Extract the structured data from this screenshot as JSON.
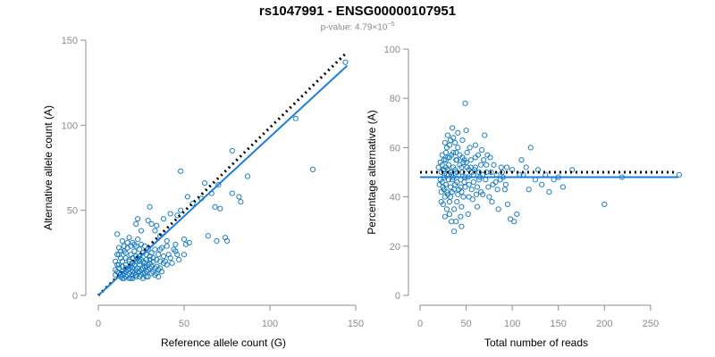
{
  "title": "rs1047991 - ENSG00000107951",
  "pvalue": {
    "prefix": "p-value: ",
    "mantissa": "4.79×10",
    "exponent": "−5"
  },
  "colors": {
    "points": "#1f7fc4",
    "fit": "#1a7fe0",
    "reference": "#000000",
    "axis": "#8c8c8c"
  },
  "chart_data": [
    {
      "type": "scatter",
      "xlabel": "Reference allele count (G)",
      "ylabel": "Alternative allele count (A)",
      "xlim": [
        0,
        150
      ],
      "ylim": [
        0,
        150
      ],
      "xticks": [
        "0",
        "50",
        "100",
        "150"
      ],
      "yticks": [
        "0",
        "50",
        "100",
        "150"
      ],
      "lines": [
        {
          "kind": "reference",
          "style": "dotted",
          "from": [
            0,
            0
          ],
          "to": [
            145,
            143
          ]
        },
        {
          "kind": "fit",
          "style": "solid",
          "from": [
            0,
            0
          ],
          "to": [
            145,
            135
          ]
        }
      ],
      "points": [
        [
          144,
          137
        ],
        [
          115,
          104
        ],
        [
          125,
          74
        ],
        [
          48,
          73
        ],
        [
          78,
          85
        ],
        [
          87,
          70
        ],
        [
          62,
          66
        ],
        [
          70,
          65
        ],
        [
          66,
          60
        ],
        [
          78,
          60
        ],
        [
          68,
          52
        ],
        [
          71,
          51
        ],
        [
          82,
          58
        ],
        [
          83,
          55
        ],
        [
          52,
          58
        ],
        [
          60,
          57
        ],
        [
          55,
          54
        ],
        [
          42,
          48
        ],
        [
          46,
          47
        ],
        [
          38,
          45
        ],
        [
          48,
          50
        ],
        [
          64,
          35
        ],
        [
          74,
          34
        ],
        [
          69,
          32
        ],
        [
          75,
          32
        ],
        [
          50,
          33
        ],
        [
          53,
          31
        ],
        [
          51,
          30
        ],
        [
          45,
          30
        ],
        [
          40,
          29
        ],
        [
          40,
          32
        ],
        [
          36,
          35
        ],
        [
          33,
          38
        ],
        [
          34,
          41
        ],
        [
          31,
          42
        ],
        [
          29,
          44
        ],
        [
          25,
          38
        ],
        [
          23,
          45
        ],
        [
          22,
          42
        ],
        [
          30,
          52
        ],
        [
          11,
          36
        ],
        [
          14,
          32
        ],
        [
          18,
          34
        ],
        [
          20,
          31
        ],
        [
          22,
          29
        ],
        [
          24,
          27
        ],
        [
          26,
          25
        ],
        [
          28,
          24
        ],
        [
          30,
          23
        ],
        [
          32,
          22
        ],
        [
          34,
          21
        ],
        [
          36,
          20
        ],
        [
          38,
          19
        ],
        [
          40,
          18
        ],
        [
          43,
          19
        ],
        [
          44,
          27
        ],
        [
          46,
          24
        ],
        [
          36,
          27
        ],
        [
          12,
          28
        ],
        [
          15,
          26
        ],
        [
          17,
          28
        ],
        [
          19,
          24
        ],
        [
          21,
          26
        ],
        [
          23,
          22
        ],
        [
          25,
          21
        ],
        [
          27,
          19
        ],
        [
          29,
          18
        ],
        [
          31,
          17
        ],
        [
          33,
          16
        ],
        [
          35,
          15
        ],
        [
          37,
          14
        ],
        [
          13,
          22
        ],
        [
          14,
          20
        ],
        [
          16,
          18
        ],
        [
          18,
          16
        ],
        [
          20,
          14
        ],
        [
          22,
          12
        ],
        [
          24,
          11
        ],
        [
          26,
          10
        ],
        [
          28,
          11
        ],
        [
          11,
          14
        ],
        [
          12,
          16
        ],
        [
          13,
          12
        ],
        [
          15,
          10
        ],
        [
          17,
          12
        ],
        [
          19,
          10
        ],
        [
          21,
          18
        ],
        [
          23,
          16
        ],
        [
          25,
          15
        ],
        [
          27,
          17
        ],
        [
          29,
          15
        ],
        [
          31,
          13
        ],
        [
          33,
          12
        ],
        [
          35,
          11
        ],
        [
          12,
          18
        ],
        [
          14,
          14
        ],
        [
          16,
          22
        ],
        [
          18,
          20
        ],
        [
          20,
          22
        ],
        [
          22,
          20
        ],
        [
          24,
          18
        ],
        [
          26,
          16
        ],
        [
          28,
          14
        ],
        [
          30,
          19
        ],
        [
          13,
          11
        ],
        [
          15,
          13
        ],
        [
          17,
          15
        ],
        [
          19,
          17
        ],
        [
          21,
          13
        ],
        [
          23,
          14
        ],
        [
          25,
          12
        ],
        [
          27,
          13
        ],
        [
          29,
          11
        ],
        [
          14,
          10
        ],
        [
          16,
          11
        ],
        [
          18,
          10
        ],
        [
          20,
          10
        ],
        [
          10,
          12
        ],
        [
          11,
          18
        ],
        [
          10,
          20
        ],
        [
          12,
          24
        ],
        [
          16,
          25
        ],
        [
          18,
          21
        ],
        [
          20,
          19
        ],
        [
          22,
          23
        ],
        [
          24,
          23
        ],
        [
          26,
          20
        ],
        [
          28,
          21
        ],
        [
          32,
          20
        ],
        [
          34,
          17
        ],
        [
          36,
          16
        ],
        [
          38,
          23
        ],
        [
          42,
          22
        ],
        [
          45,
          26
        ],
        [
          47,
          21
        ],
        [
          50,
          24
        ],
        [
          41,
          24
        ],
        [
          39,
          20
        ],
        [
          35,
          24
        ],
        [
          37,
          28
        ],
        [
          33,
          27
        ],
        [
          31,
          25
        ],
        [
          29,
          27
        ],
        [
          27,
          29
        ],
        [
          25,
          30
        ],
        [
          23,
          33
        ],
        [
          21,
          30
        ],
        [
          19,
          29
        ],
        [
          17,
          31
        ],
        [
          15,
          29
        ],
        [
          13,
          26
        ],
        [
          11,
          24
        ],
        [
          16,
          16
        ],
        [
          14,
          17
        ],
        [
          12,
          13
        ],
        [
          10,
          15
        ],
        [
          18,
          13
        ],
        [
          20,
          16
        ],
        [
          22,
          15
        ],
        [
          24,
          14
        ],
        [
          26,
          13
        ],
        [
          30,
          16
        ],
        [
          32,
          14
        ],
        [
          34,
          13
        ],
        [
          20,
          12
        ],
        [
          22,
          11
        ],
        [
          16,
          14
        ],
        [
          24,
          20
        ],
        [
          28,
          17
        ],
        [
          30,
          21
        ]
      ]
    },
    {
      "type": "scatter",
      "xlabel": "Total number of reads",
      "ylabel": "Percentage alternative (A)",
      "xlim": [
        0,
        285
      ],
      "ylim": [
        0,
        100
      ],
      "xticks": [
        "0",
        "50",
        "100",
        "150",
        "200",
        "250"
      ],
      "yticks": [
        "0",
        "20",
        "40",
        "60",
        "80",
        "100"
      ],
      "lines": [
        {
          "kind": "reference",
          "style": "dotted",
          "from": [
            0,
            50
          ],
          "to": [
            278,
            50
          ]
        },
        {
          "kind": "fit",
          "style": "solid",
          "from": [
            0,
            48
          ],
          "to": [
            280,
            48
          ]
        }
      ],
      "points": [
        [
          281,
          49
        ],
        [
          219,
          48
        ],
        [
          200,
          37
        ],
        [
          165,
          51
        ],
        [
          155,
          44
        ],
        [
          145,
          47
        ],
        [
          140,
          42
        ],
        [
          132,
          45
        ],
        [
          128,
          51
        ],
        [
          120,
          60
        ],
        [
          118,
          43
        ],
        [
          115,
          52
        ],
        [
          112,
          49
        ],
        [
          105,
          33
        ],
        [
          102,
          30
        ],
        [
          98,
          31
        ],
        [
          95,
          37
        ],
        [
          92,
          43
        ],
        [
          90,
          48
        ],
        [
          88,
          52
        ],
        [
          85,
          35
        ],
        [
          82,
          46
        ],
        [
          80,
          53
        ],
        [
          78,
          38
        ],
        [
          76,
          56
        ],
        [
          74,
          44
        ],
        [
          72,
          50
        ],
        [
          70,
          65
        ],
        [
          68,
          41
        ],
        [
          66,
          53
        ],
        [
          64,
          47
        ],
        [
          62,
          36
        ],
        [
          60,
          56
        ],
        [
          58,
          49
        ],
        [
          56,
          43
        ],
        [
          55,
          52
        ],
        [
          54,
          60
        ],
        [
          53,
          45
        ],
        [
          52,
          33
        ],
        [
          51,
          58
        ],
        [
          50,
          67
        ],
        [
          49,
          78
        ],
        [
          49,
          48
        ],
        [
          48,
          55
        ],
        [
          47,
          40
        ],
        [
          46,
          63
        ],
        [
          45,
          52
        ],
        [
          45,
          36
        ],
        [
          44,
          47
        ],
        [
          43,
          57
        ],
        [
          42,
          43
        ],
        [
          41,
          60
        ],
        [
          40,
          50
        ],
        [
          40,
          38
        ],
        [
          39,
          55
        ],
        [
          38,
          45
        ],
        [
          38,
          62
        ],
        [
          37,
          35
        ],
        [
          36,
          52
        ],
        [
          36,
          48
        ],
        [
          35,
          68
        ],
        [
          35,
          42
        ],
        [
          34,
          57
        ],
        [
          34,
          30
        ],
        [
          33,
          50
        ],
        [
          33,
          44
        ],
        [
          32,
          61
        ],
        [
          32,
          38
        ],
        [
          31,
          53
        ],
        [
          31,
          47
        ],
        [
          30,
          65
        ],
        [
          30,
          41
        ],
        [
          30,
          56
        ],
        [
          29,
          49
        ],
        [
          29,
          35
        ],
        [
          28,
          58
        ],
        [
          28,
          45
        ],
        [
          28,
          52
        ],
        [
          27,
          40
        ],
        [
          27,
          62
        ],
        [
          26,
          48
        ],
        [
          26,
          55
        ],
        [
          26,
          43
        ],
        [
          25,
          51
        ],
        [
          25,
          37
        ],
        [
          24,
          46
        ],
        [
          24,
          57
        ],
        [
          23,
          50
        ],
        [
          23,
          42
        ],
        [
          22,
          54
        ],
        [
          22,
          47
        ],
        [
          21,
          45
        ],
        [
          20,
          52
        ],
        [
          37,
          26
        ],
        [
          32,
          33
        ],
        [
          44,
          32
        ],
        [
          39,
          30
        ],
        [
          27,
          32
        ],
        [
          23,
          38
        ],
        [
          45,
          28
        ],
        [
          29,
          60
        ],
        [
          33,
          63
        ],
        [
          36,
          64
        ],
        [
          41,
          66
        ],
        [
          39,
          58
        ],
        [
          46,
          56
        ],
        [
          50,
          54
        ],
        [
          53,
          51
        ],
        [
          58,
          46
        ],
        [
          62,
          44
        ],
        [
          66,
          42
        ],
        [
          71,
          47
        ],
        [
          75,
          40
        ],
        [
          30,
          51
        ],
        [
          34,
          49
        ],
        [
          38,
          51
        ],
        [
          42,
          49
        ],
        [
          46,
          50
        ],
        [
          26,
          51
        ],
        [
          31,
          49
        ],
        [
          35,
          47
        ],
        [
          40,
          46
        ],
        [
          44,
          44
        ],
        [
          48,
          46
        ],
        [
          52,
          48
        ],
        [
          56,
          50
        ],
        [
          60,
          52
        ],
        [
          64,
          50
        ],
        [
          68,
          49
        ],
        [
          72,
          53
        ],
        [
          77,
          50
        ],
        [
          83,
          49
        ],
        [
          87,
          47
        ],
        [
          93,
          45
        ],
        [
          108,
          49
        ],
        [
          125,
          47
        ],
        [
          136,
          49
        ],
        [
          150,
          48
        ],
        [
          24,
          53
        ],
        [
          28,
          55
        ],
        [
          32,
          56
        ],
        [
          36,
          58
        ],
        [
          40,
          55
        ],
        [
          43,
          53
        ],
        [
          47,
          54
        ],
        [
          51,
          52
        ],
        [
          55,
          55
        ],
        [
          59,
          51
        ],
        [
          63,
          57
        ],
        [
          67,
          59
        ],
        [
          25,
          44
        ],
        [
          29,
          42
        ],
        [
          33,
          40
        ],
        [
          37,
          43
        ],
        [
          41,
          41
        ],
        [
          45,
          42
        ],
        [
          49,
          44
        ],
        [
          53,
          40
        ],
        [
          57,
          39
        ],
        [
          61,
          41
        ],
        [
          65,
          48
        ],
        [
          69,
          55
        ],
        [
          73,
          57
        ],
        [
          79,
          45
        ],
        [
          84,
          43
        ],
        [
          89,
          50
        ],
        [
          94,
          52
        ],
        [
          100,
          51
        ],
        [
          110,
          55
        ],
        [
          60,
          61
        ]
      ]
    }
  ]
}
